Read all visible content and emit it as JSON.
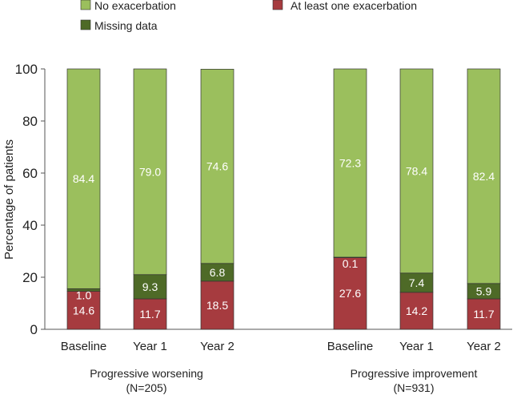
{
  "chart_data": {
    "type": "bar",
    "stacked": true,
    "ylabel": "Percentage of patients",
    "ylim": [
      0,
      100
    ],
    "yticks": [
      0,
      20,
      40,
      60,
      80,
      100
    ],
    "legend": [
      {
        "name": "No exacerbation",
        "color": "#9bbf5d"
      },
      {
        "name": "At least one exacerbation",
        "color": "#a63b3f"
      },
      {
        "name": "Missing data",
        "color": "#4e6a27"
      }
    ],
    "stack_order": [
      "At least one exacerbation",
      "Missing data",
      "No exacerbation"
    ],
    "groups": [
      {
        "name": "Progressive worsening",
        "n": "(N=205)",
        "categories": [
          "Baseline",
          "Year 1",
          "Year 2"
        ],
        "series": [
          {
            "name": "At least one exacerbation",
            "values": [
              14.6,
              11.7,
              18.5
            ],
            "labels": [
              "14.6",
              "11.7",
              "18.5"
            ]
          },
          {
            "name": "Missing data",
            "values": [
              1.0,
              9.3,
              6.8
            ],
            "labels": [
              "1.0",
              "9.3",
              "6.8"
            ]
          },
          {
            "name": "No exacerbation",
            "values": [
              84.4,
              79.0,
              74.6
            ],
            "labels": [
              "84.4",
              "79.0",
              "74.6"
            ]
          }
        ]
      },
      {
        "name": "Progressive improvement",
        "n": "(N=931)",
        "categories": [
          "Baseline",
          "Year 1",
          "Year 2"
        ],
        "series": [
          {
            "name": "At least one exacerbation",
            "values": [
              27.6,
              14.2,
              11.7
            ],
            "labels": [
              "27.6",
              "14.2",
              "11.7"
            ]
          },
          {
            "name": "Missing data",
            "values": [
              0.1,
              7.4,
              5.9
            ],
            "labels": [
              "0.1",
              "7.4",
              "5.9"
            ]
          },
          {
            "name": "No exacerbation",
            "values": [
              72.3,
              78.4,
              82.4
            ],
            "labels": [
              "72.3",
              "78.4",
              "82.4"
            ]
          }
        ]
      }
    ]
  }
}
